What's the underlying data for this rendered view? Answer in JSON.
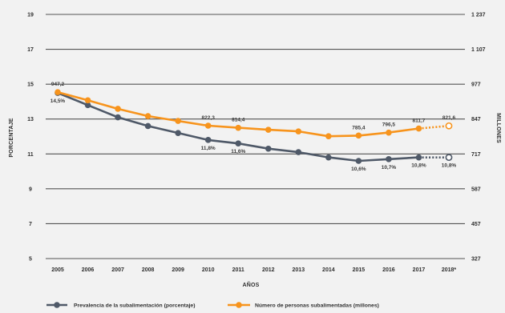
{
  "colors": {
    "background": "#f2f2f2",
    "grid": "#545454"
  },
  "chart_data": {
    "type": "line",
    "categories": [
      "2005",
      "2006",
      "2007",
      "2008",
      "2009",
      "2010",
      "2011",
      "2012",
      "2013",
      "2014",
      "2015",
      "2016",
      "2017",
      "2018*"
    ],
    "xlabel": "AÑOS",
    "ylabel": "PORCENTAJE",
    "ylabel_right": "MILLONES",
    "ylim": [
      5,
      19
    ],
    "ylim_right": [
      327,
      1237
    ],
    "yticks": [
      "5",
      "7",
      "9",
      "11",
      "13",
      "15",
      "17",
      "19"
    ],
    "yticks_right": [
      "327",
      "457",
      "587",
      "717",
      "847",
      "977",
      "1 107",
      "1 237"
    ],
    "grid": true,
    "legend_position": "bottom",
    "dotted_categories": [
      "2018*"
    ],
    "series": [
      {
        "name": "Prevalencia de la subalimentación (porcentaje)",
        "axis": "left",
        "color": "#4f5968",
        "values": [
          14.5,
          13.8,
          13.1,
          12.6,
          12.2,
          11.8,
          11.6,
          11.3,
          11.1,
          10.8,
          10.6,
          10.7,
          10.8,
          10.8
        ],
        "data_labels": [
          {
            "category": "2005",
            "text": "14,5%"
          },
          {
            "category": "2010",
            "text": "11,8%"
          },
          {
            "category": "2011",
            "text": "11,6%"
          },
          {
            "category": "2015",
            "text": "10,6%"
          },
          {
            "category": "2016",
            "text": "10,7%"
          },
          {
            "category": "2017",
            "text": "10,8%"
          },
          {
            "category": "2018*",
            "text": "10,8%"
          }
        ]
      },
      {
        "name": "Número de personas subalimentadas (millones)",
        "axis": "right",
        "color": "#f7941d",
        "values": [
          947.2,
          917,
          885,
          858,
          840,
          822.3,
          814.4,
          807,
          801,
          783,
          785.4,
          796.5,
          811.7,
          821.6
        ],
        "data_labels": [
          {
            "category": "2005",
            "text": "947,2"
          },
          {
            "category": "2010",
            "text": "822,3"
          },
          {
            "category": "2011",
            "text": "814,4"
          },
          {
            "category": "2015",
            "text": "785,4"
          },
          {
            "category": "2016",
            "text": "796,5"
          },
          {
            "category": "2017",
            "text": "811,7"
          },
          {
            "category": "2018*",
            "text": "821,6"
          }
        ]
      }
    ]
  }
}
